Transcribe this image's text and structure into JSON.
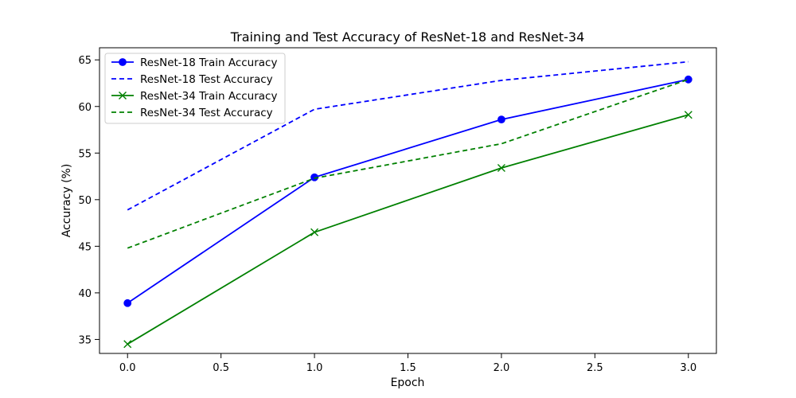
{
  "chart_data": {
    "type": "line",
    "title": "Training and Test Accuracy of ResNet-18 and ResNet-34",
    "xlabel": "Epoch",
    "ylabel": "Accuracy (%)",
    "x": [
      0,
      1,
      2,
      3
    ],
    "xlim": [
      -0.15,
      3.15
    ],
    "ylim": [
      33.5,
      66.3
    ],
    "xticks": [
      0.0,
      0.5,
      1.0,
      1.5,
      2.0,
      2.5,
      3.0
    ],
    "xtick_labels": [
      "0.0",
      "0.5",
      "1.0",
      "1.5",
      "2.0",
      "2.5",
      "3.0"
    ],
    "yticks": [
      35,
      40,
      45,
      50,
      55,
      60,
      65
    ],
    "ytick_labels": [
      "35",
      "40",
      "45",
      "50",
      "55",
      "60",
      "65"
    ],
    "grid": false,
    "legend_position": "upper-left",
    "series": [
      {
        "name": "ResNet-18 Train Accuracy",
        "values": [
          38.9,
          52.4,
          58.6,
          62.9
        ],
        "color": "#0000ff",
        "line_style": "solid",
        "marker": "circle"
      },
      {
        "name": "ResNet-18 Test Accuracy",
        "values": [
          48.9,
          59.7,
          62.8,
          64.8
        ],
        "color": "#0000ff",
        "line_style": "dashed",
        "marker": "none"
      },
      {
        "name": "ResNet-34 Train Accuracy",
        "values": [
          34.5,
          46.5,
          53.4,
          59.1
        ],
        "color": "#008000",
        "line_style": "solid",
        "marker": "x"
      },
      {
        "name": "ResNet-34 Test Accuracy",
        "values": [
          44.8,
          52.3,
          56.0,
          62.9
        ],
        "color": "#008000",
        "line_style": "dashed",
        "marker": "none"
      }
    ]
  }
}
